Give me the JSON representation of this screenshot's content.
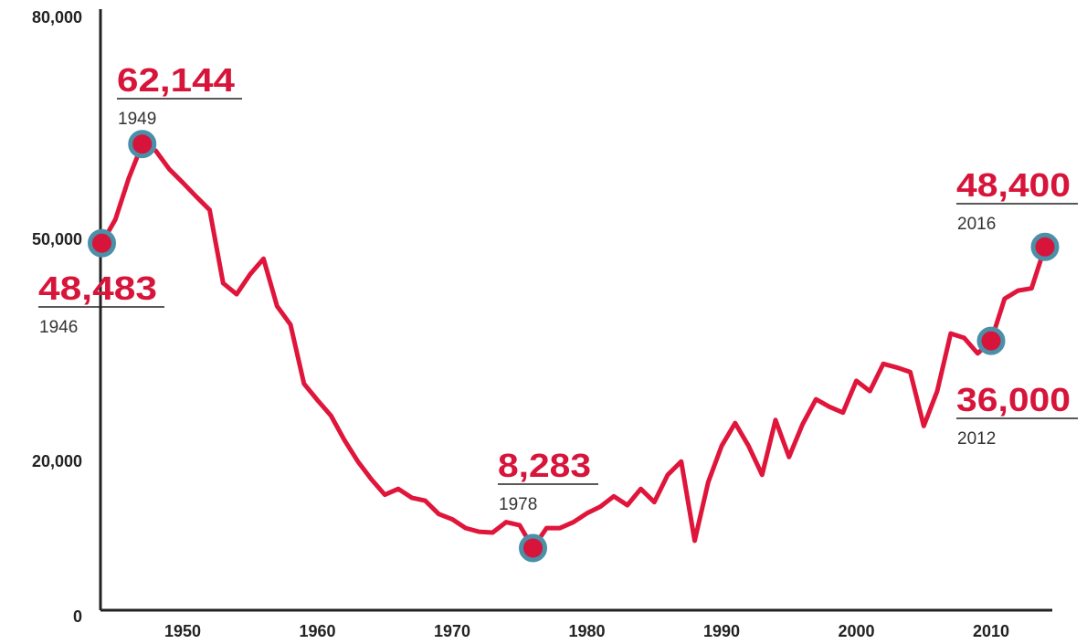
{
  "chart_data": {
    "type": "line",
    "x": [
      1944,
      1945,
      1946,
      1947,
      1948,
      1949,
      1950,
      1951,
      1952,
      1953,
      1954,
      1955,
      1956,
      1957,
      1958,
      1959,
      1960,
      1961,
      1962,
      1963,
      1964,
      1965,
      1966,
      1967,
      1968,
      1969,
      1970,
      1971,
      1972,
      1973,
      1974,
      1975,
      1976,
      1977,
      1978,
      1979,
      1980,
      1981,
      1982,
      1983,
      1984,
      1985,
      1986,
      1987,
      1988,
      1989,
      1990,
      1991,
      1992,
      1993,
      1994,
      1995,
      1996,
      1997,
      1998,
      1999,
      2000,
      2001,
      2002,
      2003,
      2004,
      2005,
      2006,
      2007,
      2008,
      2009,
      2010,
      2011,
      2012,
      2013,
      2014
    ],
    "series": [
      {
        "color": "#e0153b",
        "values": [
          49600,
          52800,
          58400,
          63000,
          62100,
          59600,
          57800,
          55900,
          54100,
          44200,
          42700,
          45400,
          47500,
          41100,
          38600,
          30600,
          28400,
          26300,
          23000,
          20100,
          17700,
          15600,
          16400,
          15200,
          14800,
          13000,
          12300,
          11100,
          10600,
          10500,
          11900,
          11500,
          8400,
          11100,
          11100,
          11900,
          13100,
          14000,
          15400,
          14200,
          16400,
          14600,
          18300,
          20100,
          9400,
          17300,
          22200,
          25300,
          22200,
          18300,
          25700,
          20700,
          25100,
          28500,
          27500,
          26700,
          31000,
          29600,
          33300,
          32800,
          32200,
          24900,
          29600,
          37400,
          36800,
          34700,
          36400,
          42100,
          43200,
          43500,
          49100
        ]
      }
    ],
    "marker_color": "#d7143a",
    "marker_ring_color": "#4a90a8",
    "xlim": [
      1944,
      2015
    ],
    "xticks": [
      1950,
      1960,
      1970,
      1980,
      1990,
      2000,
      2010
    ],
    "ylim": [
      0,
      80000
    ],
    "yticks": [
      0,
      {
        "value": 20000,
        "label": "20,000"
      },
      {
        "value": 50000,
        "label": "50,000"
      },
      {
        "value": 80000,
        "label": "80,000"
      }
    ],
    "annotations": [
      {
        "value": "62,144",
        "year": "1949"
      },
      {
        "value": "48,483",
        "year": "1946"
      },
      {
        "value": "8,283",
        "year": "1978"
      },
      {
        "value": "48,400",
        "year": "2016"
      },
      {
        "value": "36,000",
        "year": "2012"
      }
    ]
  }
}
